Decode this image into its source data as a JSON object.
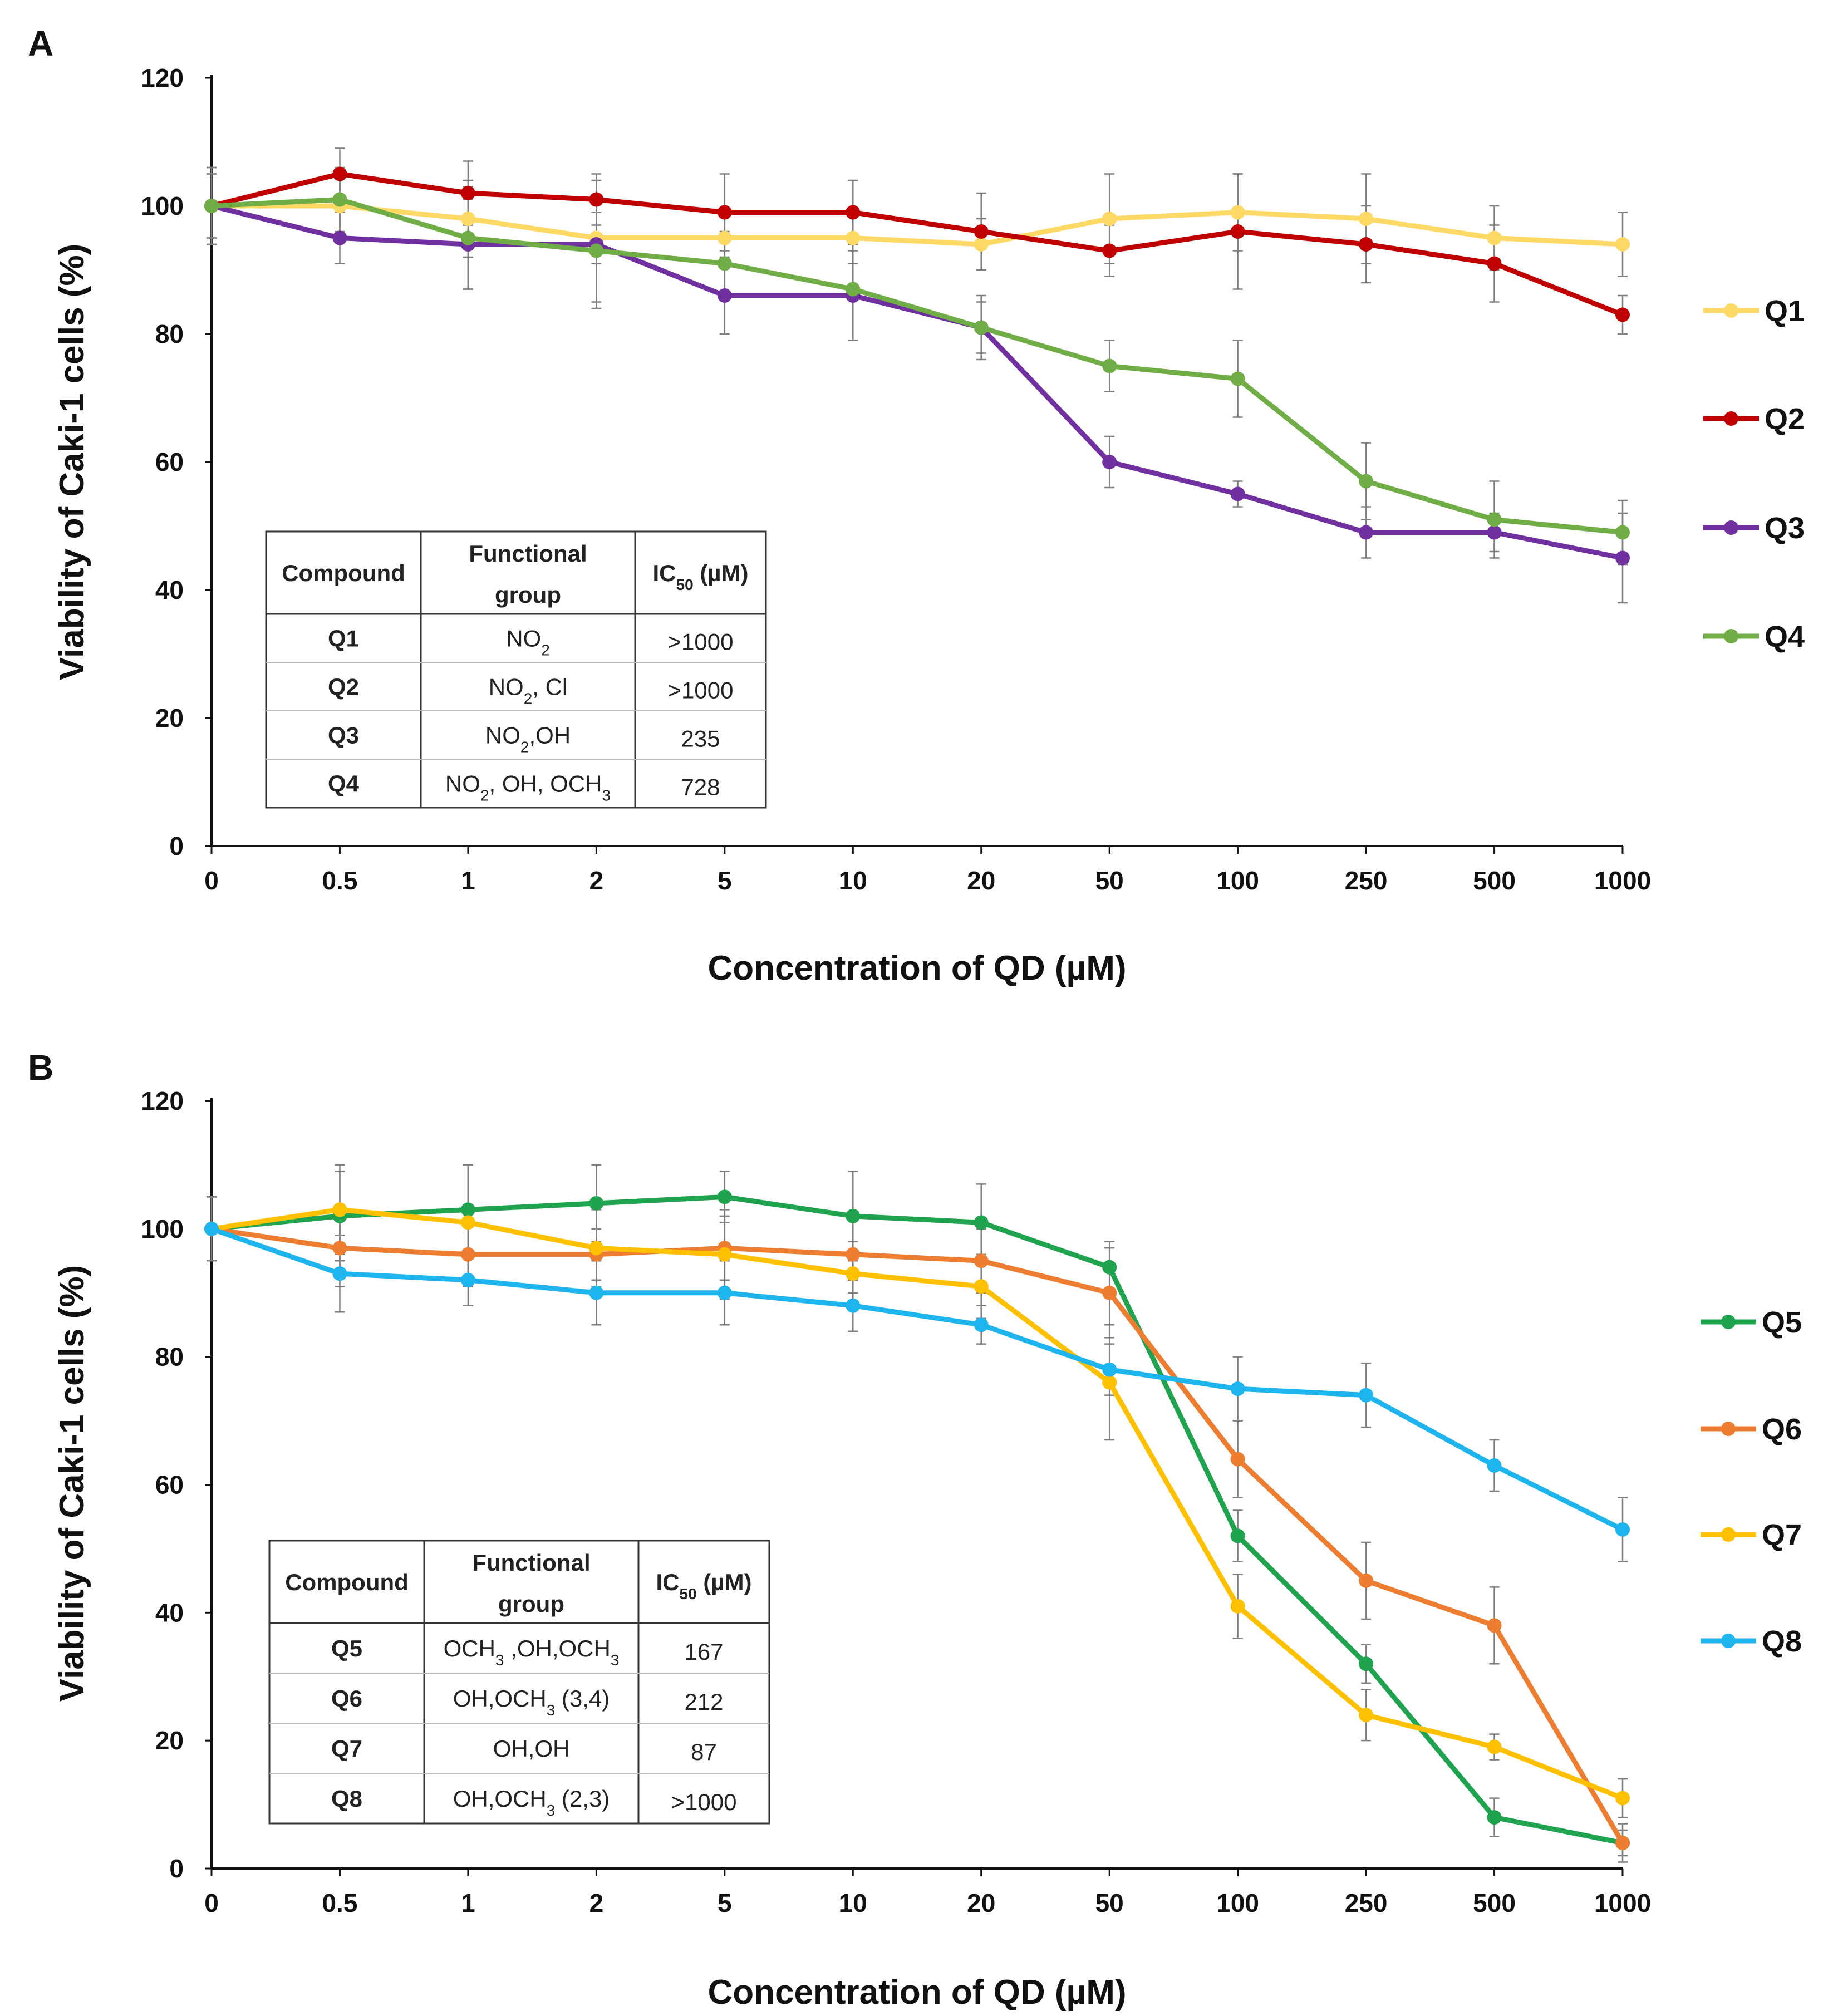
{
  "chart_data": [
    {
      "panel": "A",
      "type": "line",
      "title": "",
      "xlabel": "Concentration of QD (µM)",
      "ylabel": "Viability of Caki-1 cells (%)",
      "ylim": [
        0,
        120
      ],
      "yticks": [
        "0",
        "20",
        "40",
        "60",
        "80",
        "100",
        "120"
      ],
      "categories": [
        "0",
        "0.5",
        "1",
        "2",
        "5",
        "10",
        "20",
        "50",
        "100",
        "250",
        "500",
        "1000"
      ],
      "series": [
        {
          "name": "Q1",
          "color": "#FFD966",
          "values": [
            100,
            100,
            98,
            95,
            95,
            95,
            94,
            98,
            99,
            98,
            95,
            94
          ],
          "errors": [
            6,
            5,
            6,
            4,
            4,
            4,
            4,
            7,
            6,
            7,
            5,
            5
          ]
        },
        {
          "name": "Q2",
          "color": "#C00000",
          "values": [
            100,
            105,
            102,
            101,
            99,
            99,
            96,
            93,
            96,
            94,
            91,
            83
          ],
          "errors": [
            6,
            4,
            5,
            4,
            6,
            5,
            6,
            4,
            9,
            6,
            6,
            3
          ]
        },
        {
          "name": "Q3",
          "color": "#7030A0",
          "values": [
            100,
            95,
            94,
            94,
            86,
            86,
            81,
            60,
            55,
            49,
            49,
            45
          ],
          "errors": [
            5,
            4,
            7,
            10,
            6,
            7,
            5,
            4,
            2,
            4,
            3,
            7
          ]
        },
        {
          "name": "Q4",
          "color": "#70AD47",
          "values": [
            100,
            101,
            95,
            93,
            91,
            87,
            81,
            75,
            73,
            57,
            51,
            49
          ],
          "errors": [
            5,
            5,
            8,
            8,
            5,
            8,
            4,
            4,
            6,
            6,
            6,
            5
          ]
        }
      ],
      "table": {
        "headers": [
          "Compound",
          "Functional group",
          "IC50 (µM)"
        ],
        "rows": [
          [
            "Q1",
            "NO2",
            ">1000"
          ],
          [
            "Q2",
            "NO2, Cl",
            ">1000"
          ],
          [
            "Q3",
            "NO2,OH",
            "235"
          ],
          [
            "Q4",
            "NO2, OH, OCH3",
            "728"
          ]
        ]
      }
    },
    {
      "panel": "B",
      "type": "line",
      "title": "",
      "xlabel": "Concentration of QD (µM)",
      "ylabel": "Viability of Caki-1 cells (%)",
      "ylim": [
        0,
        120
      ],
      "yticks": [
        "0",
        "20",
        "40",
        "60",
        "80",
        "100",
        "120"
      ],
      "categories": [
        "0",
        "0.5",
        "1",
        "2",
        "5",
        "10",
        "20",
        "50",
        "100",
        "250",
        "500",
        "1000"
      ],
      "series": [
        {
          "name": "Q5",
          "color": "#1FA34F",
          "values": [
            100,
            102,
            103,
            104,
            105,
            102,
            101,
            94,
            52,
            32,
            8,
            4
          ],
          "errors": [
            5,
            7,
            7,
            6,
            4,
            7,
            6,
            4,
            4,
            3,
            3,
            2
          ]
        },
        {
          "name": "Q6",
          "color": "#ED7D31",
          "values": [
            100,
            97,
            96,
            96,
            97,
            96,
            95,
            90,
            64,
            45,
            38,
            4
          ],
          "errors": [
            5,
            6,
            5,
            4,
            5,
            6,
            5,
            7,
            6,
            6,
            6,
            3
          ]
        },
        {
          "name": "Q7",
          "color": "#FFC000",
          "values": [
            100,
            103,
            101,
            97,
            96,
            93,
            91,
            76,
            41,
            24,
            19,
            11
          ],
          "errors": [
            5,
            7,
            9,
            6,
            7,
            5,
            5,
            9,
            5,
            4,
            2,
            3
          ]
        },
        {
          "name": "Q8",
          "color": "#1EB4EE",
          "values": [
            100,
            93,
            92,
            90,
            90,
            88,
            85,
            78,
            75,
            74,
            63,
            53
          ],
          "errors": [
            5,
            6,
            4,
            5,
            5,
            4,
            3,
            4,
            5,
            5,
            4,
            5
          ]
        }
      ],
      "table": {
        "headers": [
          "Compound",
          "Functional group",
          "IC50 (µM)"
        ],
        "rows": [
          [
            "Q5",
            "OCH3 ,OH,OCH3",
            "167"
          ],
          [
            "Q6",
            "OH,OCH3 (3,4)",
            "212"
          ],
          [
            "Q7",
            "OH,OH",
            "87"
          ],
          [
            "Q8",
            "OH,OCH3 (2,3)",
            ">1000"
          ]
        ]
      }
    }
  ]
}
